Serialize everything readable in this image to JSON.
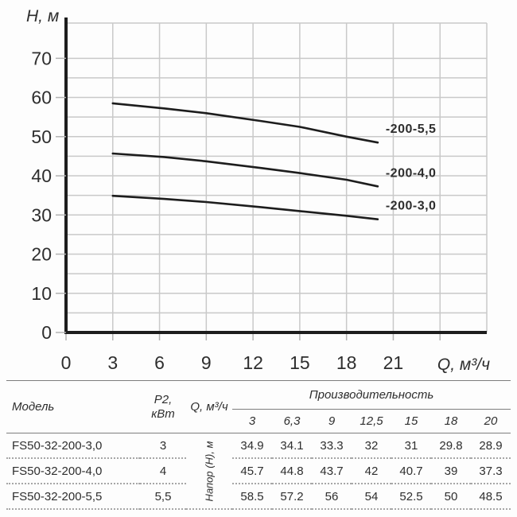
{
  "chart": {
    "y_axis_title": "H, м",
    "x_axis_title": "Q, м³/ч",
    "y_tick_labels": [
      0,
      10,
      20,
      30,
      40,
      50,
      60,
      70
    ],
    "x_tick_labels": [
      0,
      3,
      6,
      9,
      12,
      15,
      18,
      21
    ]
  },
  "chart_data": {
    "type": "line",
    "title": "",
    "xlabel": "Q, м³/ч",
    "ylabel": "H, м",
    "xlim": [
      0,
      27
    ],
    "ylim": [
      0,
      79
    ],
    "x_grid_step": 3,
    "y_grid_step": 5,
    "grid": true,
    "legend_position": "inline-right-of-curves",
    "x": [
      3,
      6.3,
      9,
      12.5,
      15,
      18,
      20
    ],
    "series": [
      {
        "name": "-200-5,5",
        "values": [
          58.5,
          57.2,
          56,
          54,
          52.5,
          50,
          48.5
        ]
      },
      {
        "name": "-200-4,0",
        "values": [
          45.7,
          44.8,
          43.7,
          42,
          40.7,
          39,
          37.3
        ]
      },
      {
        "name": "-200-3,0",
        "values": [
          34.9,
          34.1,
          33.3,
          32,
          31,
          29.8,
          28.9
        ]
      }
    ]
  },
  "colors": {
    "curve": "#1d1d1d",
    "axis": "#1d1d1d",
    "grid": "#c9c9c9",
    "tick": "#b3b3b3",
    "text": "#2e2e2e",
    "table_line": "#7d7d7d",
    "table_dotted": "#a6a6a6"
  },
  "table": {
    "col_model": "Модель",
    "col_p2_line1": "P2,",
    "col_p2_line2": "кВт",
    "col_q": "Q, м³/ч",
    "group_header": "Производительность",
    "rotated_label": "Напор (H), м",
    "sub_headers": [
      "3",
      "6,3",
      "9",
      "12,5",
      "15",
      "18",
      "20"
    ],
    "rows": [
      {
        "model": "FS50-32-200-3,0",
        "p2": "3",
        "values": [
          "34.9",
          "34.1",
          "33.3",
          "32",
          "31",
          "29.8",
          "28.9"
        ]
      },
      {
        "model": "FS50-32-200-4,0",
        "p2": "4",
        "values": [
          "45.7",
          "44.8",
          "43.7",
          "42",
          "40.7",
          "39",
          "37.3"
        ]
      },
      {
        "model": "FS50-32-200-5,5",
        "p2": "5,5",
        "values": [
          "58.5",
          "57.2",
          "56",
          "54",
          "52.5",
          "50",
          "48.5"
        ]
      }
    ]
  }
}
